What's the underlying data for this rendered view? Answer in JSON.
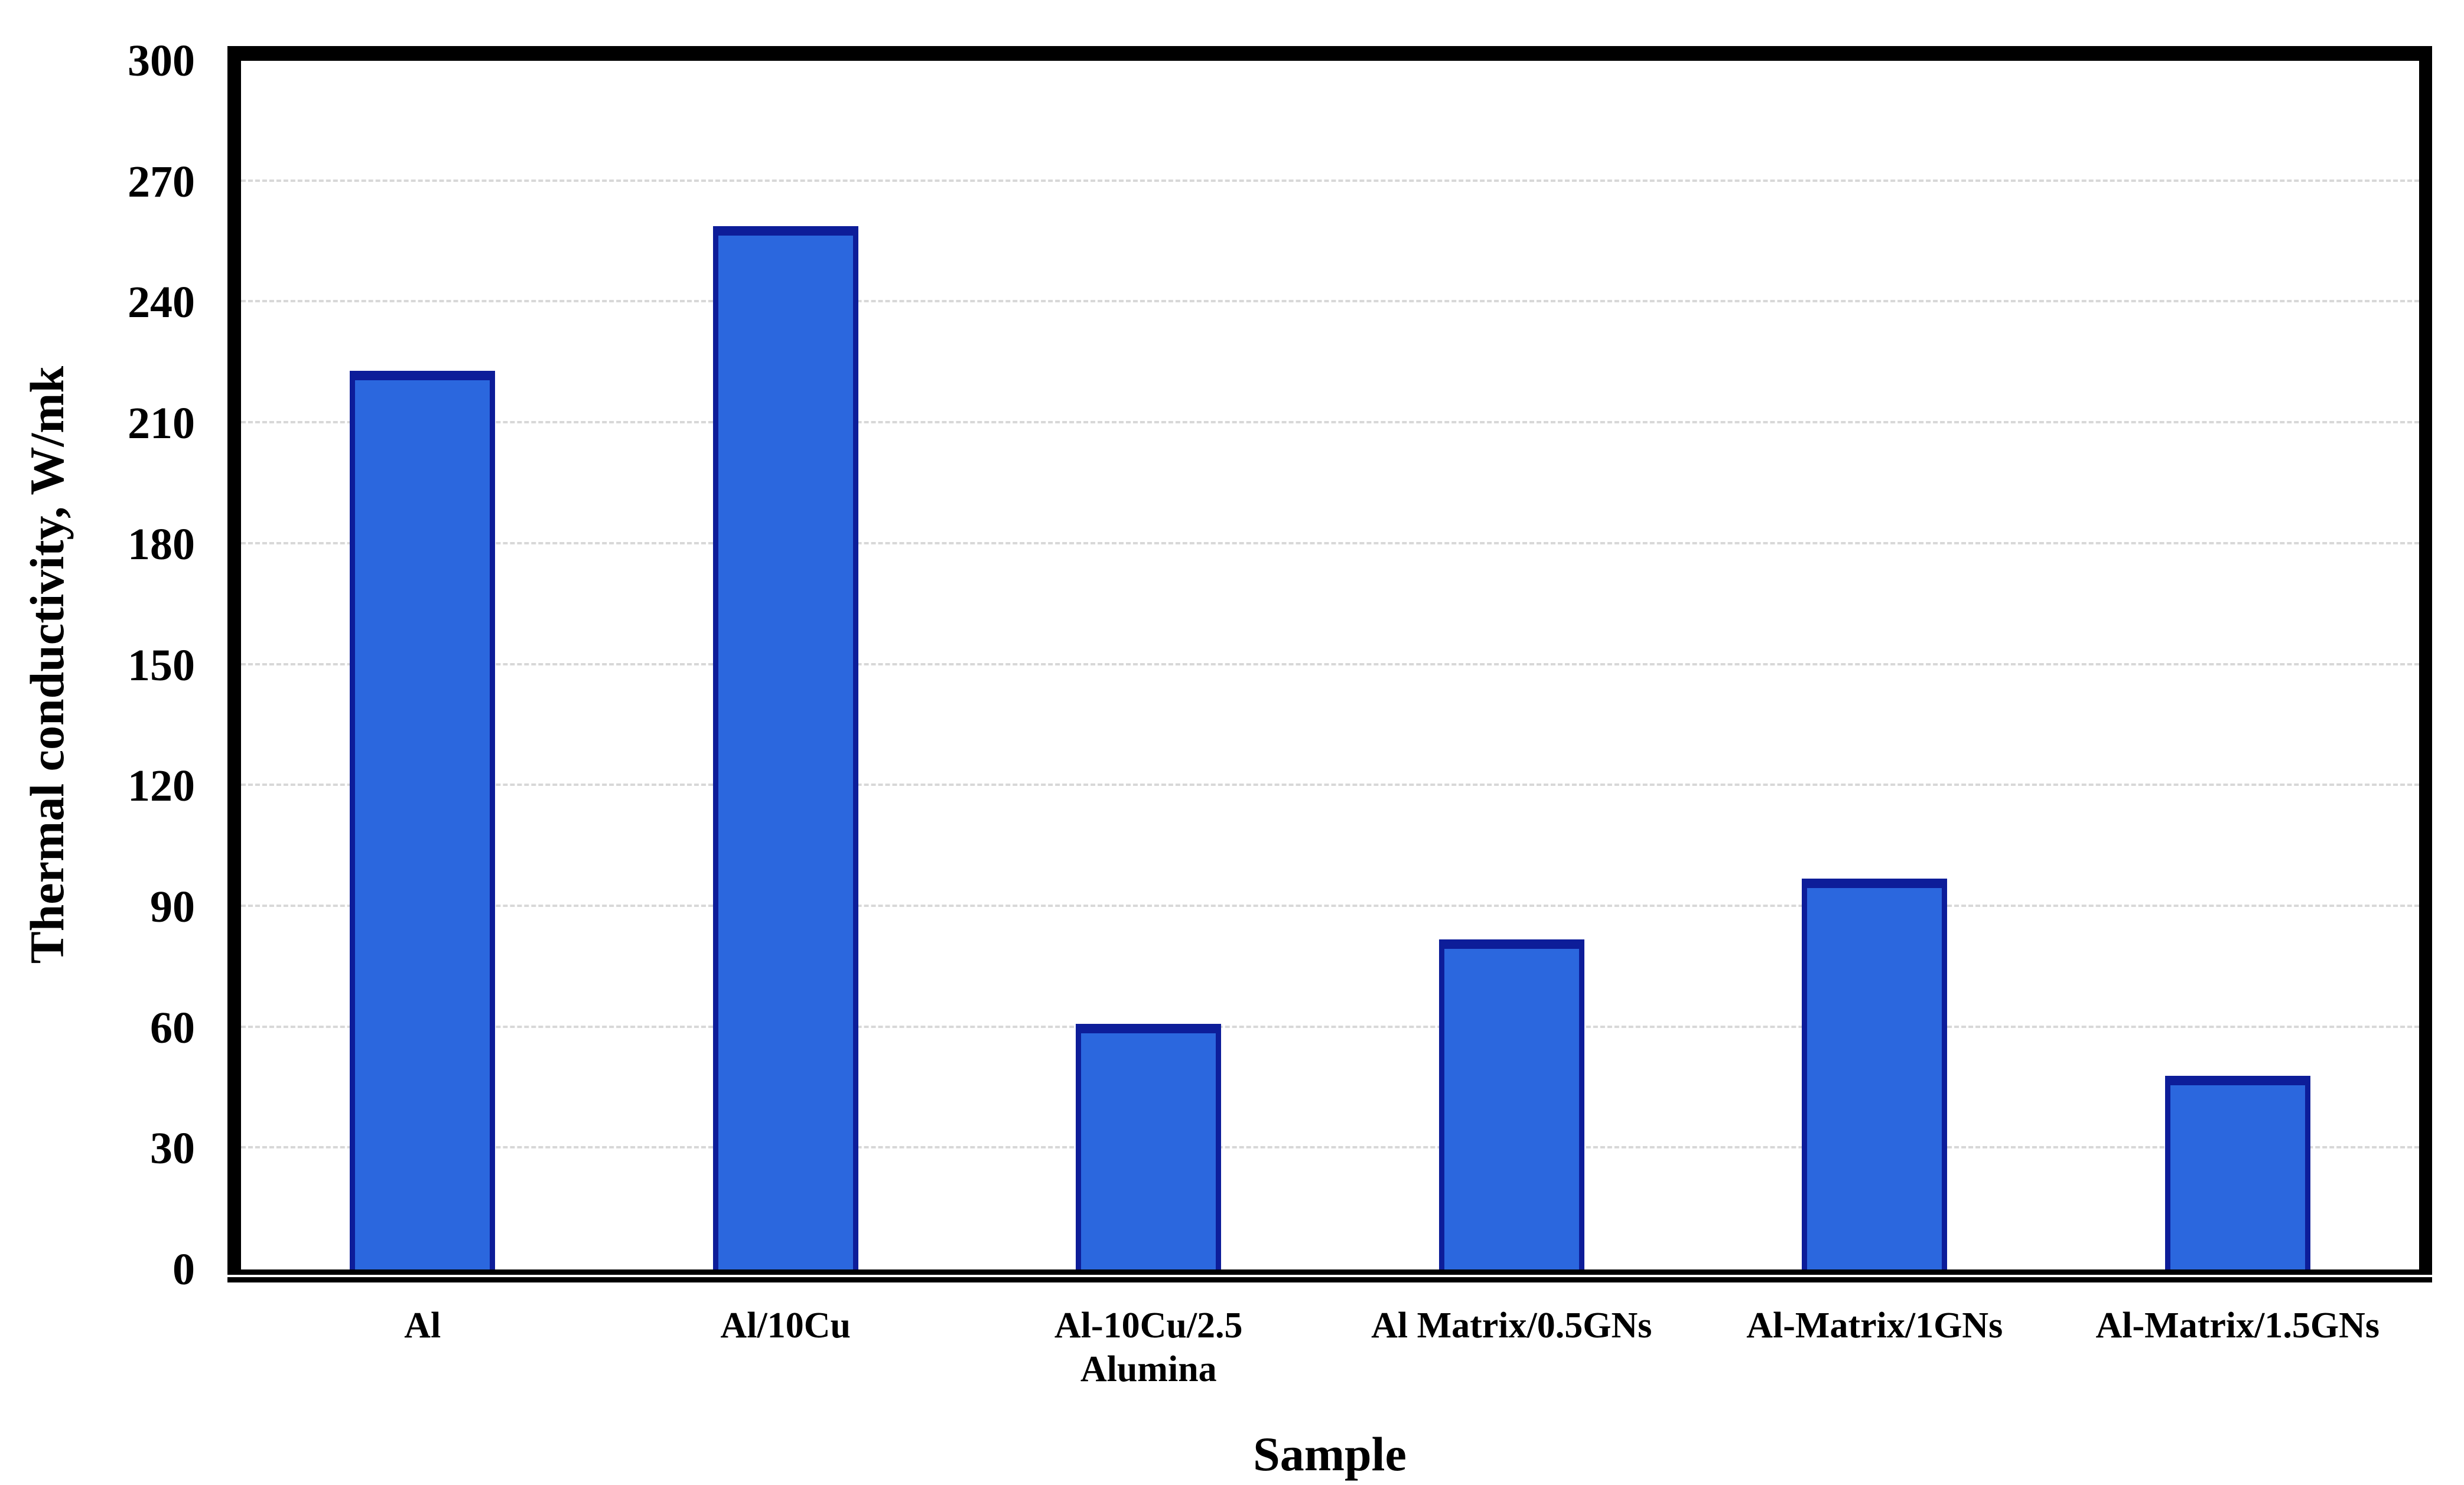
{
  "chart_data": {
    "type": "bar",
    "title": "",
    "xlabel": "Sample",
    "ylabel": "Thermal conductivity, W/mk",
    "categories": [
      "Al",
      "Al/10Cu",
      "Al-10Cu/2.5\nAlumina",
      "Al Matrix/0.5GNs",
      "Al-Matrix/1GNs",
      "Al-Matrix/1.5GNs"
    ],
    "values": [
      223,
      259,
      61,
      82,
      97,
      48
    ],
    "ylim": [
      0,
      300
    ],
    "ytick_step": 30,
    "yticks": [
      0,
      30,
      60,
      90,
      120,
      150,
      180,
      210,
      240,
      270,
      300
    ],
    "grid": "horizontal-dashed",
    "legend": "none",
    "bar_gap_ratio": 0.6,
    "colors": {
      "bar_fill": "#2B67DE",
      "bar_border": "#0D1D99",
      "gridline": "#D8D8D8",
      "axis": "#000000",
      "background": "#FFFFFF",
      "text": "#000000"
    }
  }
}
